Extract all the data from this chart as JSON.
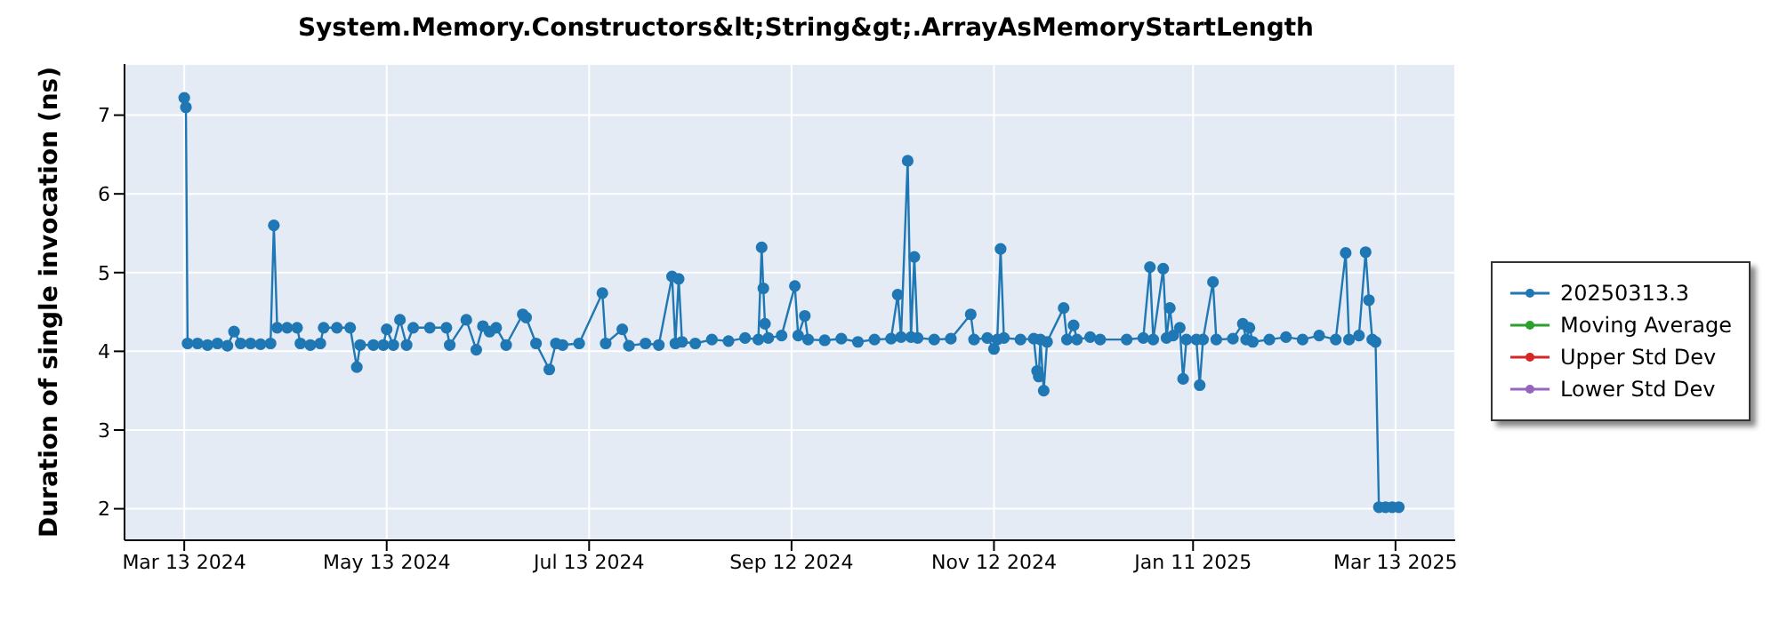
{
  "chart_data": {
    "type": "line",
    "title": "System.Memory.Constructors&lt;String&gt;.ArrayAsMemoryStartLength",
    "ylabel": "Duration of single invocation (ns)",
    "xlim": [
      "2024-02-24",
      "2025-03-31"
    ],
    "xticks": [
      {
        "value": "2024-03-13",
        "label": "Mar 13 2024"
      },
      {
        "value": "2024-05-13",
        "label": "May 13 2024"
      },
      {
        "value": "2024-07-13",
        "label": "Jul 13 2024"
      },
      {
        "value": "2024-09-12",
        "label": "Sep 12 2024"
      },
      {
        "value": "2024-11-12",
        "label": "Nov 12 2024"
      },
      {
        "value": "2025-01-11",
        "label": "Jan 11 2025"
      },
      {
        "value": "2025-03-13",
        "label": "Mar 13 2025"
      }
    ],
    "ylim": [
      1.6,
      7.65
    ],
    "yticks": [
      2,
      3,
      4,
      5,
      6,
      7
    ],
    "grid": true,
    "legend": "right",
    "marker": "circle",
    "line_style": "solid",
    "series": [
      {
        "name": "20250313.3",
        "color": "#1f77b4",
        "x": [
          "2024-03-13",
          "2024-03-13T12:00",
          "2024-03-14",
          "2024-03-17",
          "2024-03-20",
          "2024-03-23",
          "2024-03-26",
          "2024-03-28",
          "2024-03-30",
          "2024-04-02",
          "2024-04-05",
          "2024-04-08",
          "2024-04-09",
          "2024-04-10",
          "2024-04-13",
          "2024-04-16",
          "2024-04-17",
          "2024-04-20",
          "2024-04-23",
          "2024-04-24",
          "2024-04-28",
          "2024-05-02",
          "2024-05-04",
          "2024-05-05",
          "2024-05-09",
          "2024-05-12",
          "2024-05-13",
          "2024-05-15",
          "2024-05-17",
          "2024-05-19",
          "2024-05-21",
          "2024-05-26",
          "2024-05-31",
          "2024-06-01",
          "2024-06-06",
          "2024-06-09",
          "2024-06-11",
          "2024-06-13",
          "2024-06-15",
          "2024-06-18",
          "2024-06-23",
          "2024-06-24",
          "2024-06-27",
          "2024-07-01",
          "2024-07-03",
          "2024-07-05",
          "2024-07-10",
          "2024-07-17",
          "2024-07-18",
          "2024-07-23",
          "2024-07-25",
          "2024-07-30",
          "2024-08-03",
          "2024-08-07",
          "2024-08-08",
          "2024-08-09",
          "2024-08-10",
          "2024-08-14",
          "2024-08-19",
          "2024-08-24",
          "2024-08-29",
          "2024-09-02",
          "2024-09-03",
          "2024-09-03T12:00",
          "2024-09-04",
          "2024-09-05",
          "2024-09-09",
          "2024-09-13",
          "2024-09-14",
          "2024-09-16",
          "2024-09-17",
          "2024-09-22",
          "2024-09-27",
          "2024-10-02",
          "2024-10-07",
          "2024-10-12",
          "2024-10-14",
          "2024-10-15",
          "2024-10-17",
          "2024-10-18",
          "2024-10-19",
          "2024-10-20",
          "2024-10-25",
          "2024-10-30",
          "2024-11-05",
          "2024-11-06",
          "2024-11-10",
          "2024-11-12",
          "2024-11-13",
          "2024-11-14",
          "2024-11-15",
          "2024-11-20",
          "2024-11-24",
          "2024-11-25",
          "2024-11-25T12:00",
          "2024-11-26",
          "2024-11-27",
          "2024-11-28",
          "2024-12-03",
          "2024-12-04",
          "2024-12-06",
          "2024-12-07",
          "2024-12-11",
          "2024-12-14",
          "2024-12-22",
          "2024-12-27",
          "2024-12-29",
          "2024-12-30",
          "2025-01-02",
          "2025-01-03",
          "2025-01-04",
          "2025-01-05",
          "2025-01-07",
          "2025-01-08",
          "2025-01-09",
          "2025-01-12",
          "2025-01-13",
          "2025-01-14",
          "2025-01-17",
          "2025-01-18",
          "2025-01-23",
          "2025-01-26",
          "2025-01-27",
          "2025-01-28",
          "2025-01-29",
          "2025-02-03",
          "2025-02-08",
          "2025-02-13",
          "2025-02-18",
          "2025-02-23",
          "2025-02-26",
          "2025-02-27",
          "2025-03-02",
          "2025-03-04",
          "2025-03-05",
          "2025-03-06",
          "2025-03-07",
          "2025-03-08",
          "2025-03-10",
          "2025-03-12",
          "2025-03-14"
        ],
        "values": [
          7.22,
          7.1,
          4.1,
          4.1,
          4.08,
          4.1,
          4.07,
          4.25,
          4.1,
          4.1,
          4.09,
          4.1,
          5.6,
          4.3,
          4.3,
          4.3,
          4.1,
          4.08,
          4.1,
          4.3,
          4.3,
          4.3,
          3.8,
          4.08,
          4.08,
          4.08,
          4.28,
          4.08,
          4.4,
          4.08,
          4.3,
          4.3,
          4.3,
          4.08,
          4.4,
          4.02,
          4.32,
          4.25,
          4.3,
          4.08,
          4.47,
          4.43,
          4.1,
          3.77,
          4.1,
          4.08,
          4.1,
          4.74,
          4.1,
          4.28,
          4.07,
          4.1,
          4.08,
          4.95,
          4.1,
          4.92,
          4.12,
          4.1,
          4.15,
          4.13,
          4.17,
          4.15,
          5.32,
          4.8,
          4.35,
          4.17,
          4.2,
          4.83,
          4.2,
          4.45,
          4.15,
          4.14,
          4.16,
          4.12,
          4.15,
          4.16,
          4.72,
          4.18,
          6.42,
          4.18,
          5.2,
          4.17,
          4.15,
          4.16,
          4.47,
          4.15,
          4.17,
          4.03,
          4.15,
          5.3,
          4.17,
          4.15,
          4.16,
          3.75,
          3.68,
          4.15,
          3.5,
          4.12,
          4.55,
          4.15,
          4.33,
          4.15,
          4.18,
          4.15,
          4.15,
          4.17,
          5.07,
          4.15,
          5.05,
          4.17,
          4.55,
          4.2,
          4.3,
          3.65,
          4.15,
          4.15,
          3.57,
          4.15,
          4.88,
          4.15,
          4.16,
          4.35,
          4.15,
          4.3,
          4.12,
          4.15,
          4.18,
          4.15,
          4.2,
          4.15,
          5.25,
          4.15,
          4.2,
          5.26,
          4.65,
          4.15,
          4.12,
          2.02,
          2.02,
          2.02,
          2.02
        ]
      },
      {
        "name": "Moving Average",
        "color": "#2ca02c"
      },
      {
        "name": "Upper Std Dev",
        "color": "#d62728"
      },
      {
        "name": "Lower Std Dev",
        "color": "#9467bd"
      }
    ]
  }
}
